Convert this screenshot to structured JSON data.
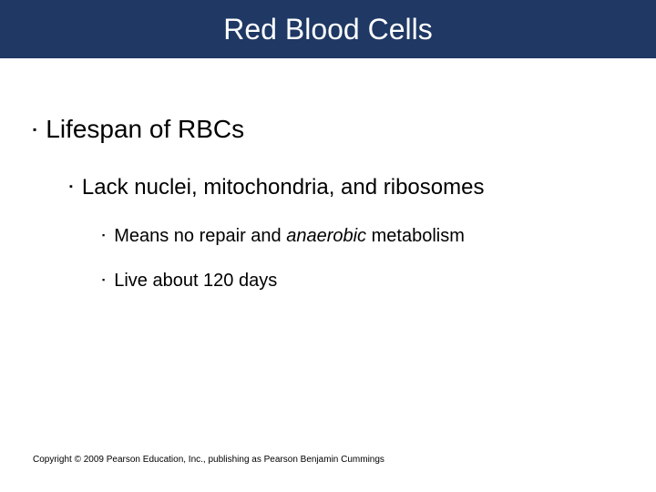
{
  "slide": {
    "title": "Red Blood Cells",
    "title_bar_color": "#1f3864",
    "title_text_color": "#ffffff",
    "background_color": "#ffffff",
    "bullets": {
      "l1": {
        "text": "Lifespan of RBCs",
        "fontsize": 28
      },
      "l2": {
        "text": "Lack nuclei, mitochondria, and ribosomes",
        "fontsize": 24
      },
      "l3a": {
        "pre": "Means no repair and ",
        "italic": "anaerobic",
        "post": " metabolism",
        "fontsize": 20
      },
      "l3b": {
        "text": "Live about 120 days",
        "fontsize": 20
      }
    },
    "bullet_marker": "▪",
    "footer": "Copyright © 2009 Pearson Education, Inc., publishing as Pearson Benjamin Cummings"
  }
}
